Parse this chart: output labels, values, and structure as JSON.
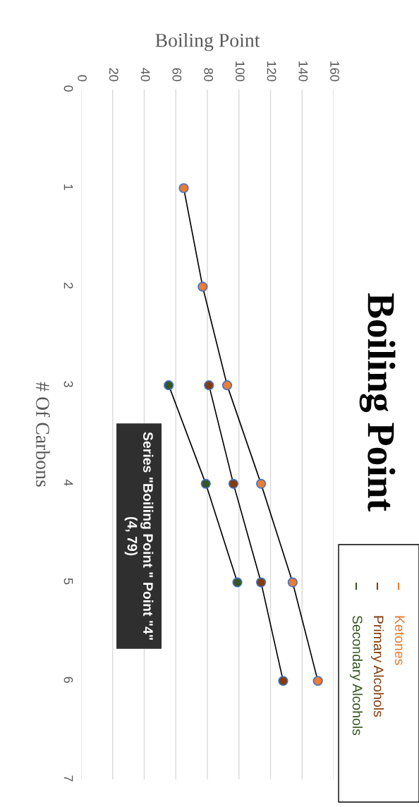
{
  "chart_data": {
    "type": "line",
    "title": "Boiling Point",
    "xlabel": "Boiling Point",
    "ylabel": "# Of Carbons",
    "series": [
      {
        "name": "Ketones",
        "color": "#ed7d31",
        "x": [
          65,
          77,
          92.5,
          114,
          134,
          150
        ],
        "values": [
          1,
          2,
          3,
          4,
          5,
          6
        ]
      },
      {
        "name": "Primary Alcohols",
        "color": "#843c0c",
        "x": [
          81,
          96.5,
          114,
          128
        ],
        "values": [
          3,
          4,
          5,
          6
        ]
      },
      {
        "name": "Secondary Alcohols",
        "color": "#375623",
        "x": [
          55.5,
          79,
          99
        ],
        "values": [
          3,
          4,
          5
        ]
      }
    ],
    "xlim": [
      0,
      160
    ],
    "xticks": [
      0,
      20,
      40,
      60,
      80,
      100,
      120,
      140,
      160
    ],
    "ylim": [
      7,
      0
    ],
    "yticks": [
      0,
      1,
      2,
      3,
      4,
      5,
      6,
      7
    ],
    "grid": "x",
    "legend": "bottom right",
    "marker": "circle",
    "line_style": "solid",
    "annotations": [
      "Series \"Boiling Point \" Point \"4\"\n(4, 79)"
    ]
  }
}
